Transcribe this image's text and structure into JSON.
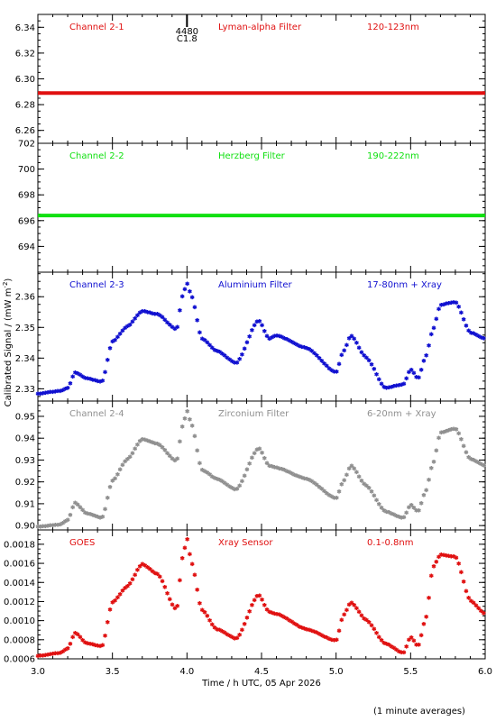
{
  "footnote": "(1 minute averages)",
  "ylabel_main": "Calibrated Signal / (mW m",
  "ylabel_exp": "-2",
  "ylabel_close": ")",
  "chart_data": [
    {
      "type": "scatter",
      "title": "Channel 2-1",
      "filter": "Lyman-alpha Filter",
      "band": "120-123nm",
      "color": "#e01010",
      "ylim": [
        6.25,
        6.35
      ],
      "yticks": [
        "6.26",
        "6.28",
        "6.30",
        "6.32",
        "6.34"
      ],
      "marker": "+",
      "annotation": {
        "x": 4.0,
        "line1": "4480",
        "line2": "C1.8"
      },
      "series": [
        {
          "x": [
            3.0,
            6.0
          ],
          "y": [
            6.289,
            6.289
          ],
          "style": "flat"
        }
      ]
    },
    {
      "type": "scatter",
      "title": "Channel 2-2",
      "filter": "Herzberg Filter",
      "band": "190-222nm",
      "color": "#10e010",
      "ylim": [
        692.0,
        702.0
      ],
      "yticks": [
        "694",
        "696",
        "698",
        "700",
        "702"
      ],
      "marker": "+",
      "series": [
        {
          "x": [
            3.0,
            6.0
          ],
          "y": [
            696.4,
            696.4
          ],
          "style": "flat"
        }
      ]
    },
    {
      "type": "scatter",
      "title": "Channel 2-3",
      "filter": "Aluminium Filter",
      "band": "17-80nm + Xray",
      "color": "#1010d0",
      "ylim": [
        2.326,
        2.368
      ],
      "yticks": [
        "2.33",
        "2.34",
        "2.35",
        "2.36"
      ],
      "marker": "*",
      "series": [
        {
          "x": [
            3.0,
            3.15,
            3.2,
            3.25,
            3.33,
            3.43,
            3.5,
            3.6,
            3.7,
            3.8,
            3.93,
            3.97,
            4.0,
            4.03,
            4.1,
            4.2,
            4.33,
            4.48,
            4.55,
            4.6,
            4.8,
            5.0,
            5.05,
            5.1,
            5.2,
            5.33,
            5.45,
            5.5,
            5.55,
            5.6,
            5.65,
            5.7,
            5.8,
            5.9,
            6.0
          ],
          "y": [
            2.328,
            2.329,
            2.33,
            2.335,
            2.333,
            2.332,
            2.345,
            2.35,
            2.355,
            2.354,
            2.349,
            2.36,
            2.364,
            2.36,
            2.346,
            2.342,
            2.338,
            2.352,
            2.346,
            2.347,
            2.343,
            2.335,
            2.342,
            2.347,
            2.34,
            2.33,
            2.331,
            2.336,
            2.333,
            2.34,
            2.349,
            2.357,
            2.358,
            2.348,
            2.346
          ]
        }
      ]
    },
    {
      "type": "scatter",
      "title": "Channel 2-4",
      "filter": "Zirconium Filter",
      "band": "6-20nm + Xray",
      "color": "#909090",
      "ylim": [
        0.898,
        0.957
      ],
      "yticks": [
        "0.90",
        "0.91",
        "0.92",
        "0.93",
        "0.94",
        "0.95"
      ],
      "marker": "*",
      "series": [
        {
          "x": [
            3.0,
            3.15,
            3.2,
            3.25,
            3.33,
            3.43,
            3.5,
            3.6,
            3.7,
            3.8,
            3.93,
            3.97,
            4.0,
            4.03,
            4.1,
            4.2,
            4.33,
            4.48,
            4.55,
            4.6,
            4.8,
            5.0,
            5.05,
            5.1,
            5.2,
            5.33,
            5.45,
            5.5,
            5.55,
            5.6,
            5.65,
            5.7,
            5.8,
            5.9,
            6.0
          ],
          "y": [
            0.899,
            0.9,
            0.902,
            0.91,
            0.905,
            0.903,
            0.92,
            0.93,
            0.939,
            0.937,
            0.929,
            0.945,
            0.952,
            0.946,
            0.925,
            0.921,
            0.916,
            0.935,
            0.927,
            0.926,
            0.921,
            0.912,
            0.92,
            0.927,
            0.918,
            0.906,
            0.903,
            0.909,
            0.906,
            0.915,
            0.928,
            0.942,
            0.944,
            0.93,
            0.927
          ]
        }
      ]
    },
    {
      "type": "scatter",
      "title": "GOES",
      "filter": "Xray Sensor",
      "band": "0.1-0.8nm",
      "color": "#e01010",
      "ylim": [
        0.0006,
        0.00195
      ],
      "yticks": [
        "0.0006",
        "0.0008",
        "0.0010",
        "0.0012",
        "0.0014",
        "0.0016",
        "0.0018"
      ],
      "marker": "*",
      "series": [
        {
          "x": [
            3.0,
            3.15,
            3.2,
            3.25,
            3.33,
            3.43,
            3.5,
            3.6,
            3.7,
            3.8,
            3.93,
            3.97,
            4.0,
            4.03,
            4.1,
            4.2,
            4.33,
            4.48,
            4.55,
            4.6,
            4.8,
            5.0,
            5.05,
            5.1,
            5.2,
            5.33,
            5.45,
            5.5,
            5.55,
            5.6,
            5.65,
            5.7,
            5.8,
            5.9,
            6.0
          ],
          "y": [
            0.00062,
            0.00065,
            0.0007,
            0.00086,
            0.00075,
            0.00072,
            0.00118,
            0.00135,
            0.00158,
            0.00148,
            0.0011,
            0.00165,
            0.00185,
            0.0016,
            0.0011,
            0.0009,
            0.0008,
            0.00126,
            0.00108,
            0.00106,
            0.0009,
            0.00078,
            0.00105,
            0.00118,
            0.001,
            0.00075,
            0.00065,
            0.00082,
            0.00072,
            0.001,
            0.00155,
            0.00168,
            0.00166,
            0.0012,
            0.00106
          ]
        }
      ]
    }
  ],
  "xaxis": {
    "label": "Time / h UTC, 05 Apr 2026",
    "range": [
      3.0,
      6.0
    ],
    "ticks": [
      "3.0",
      "3.5",
      "4.0",
      "4.5",
      "5.0",
      "5.5",
      "6.0"
    ]
  }
}
